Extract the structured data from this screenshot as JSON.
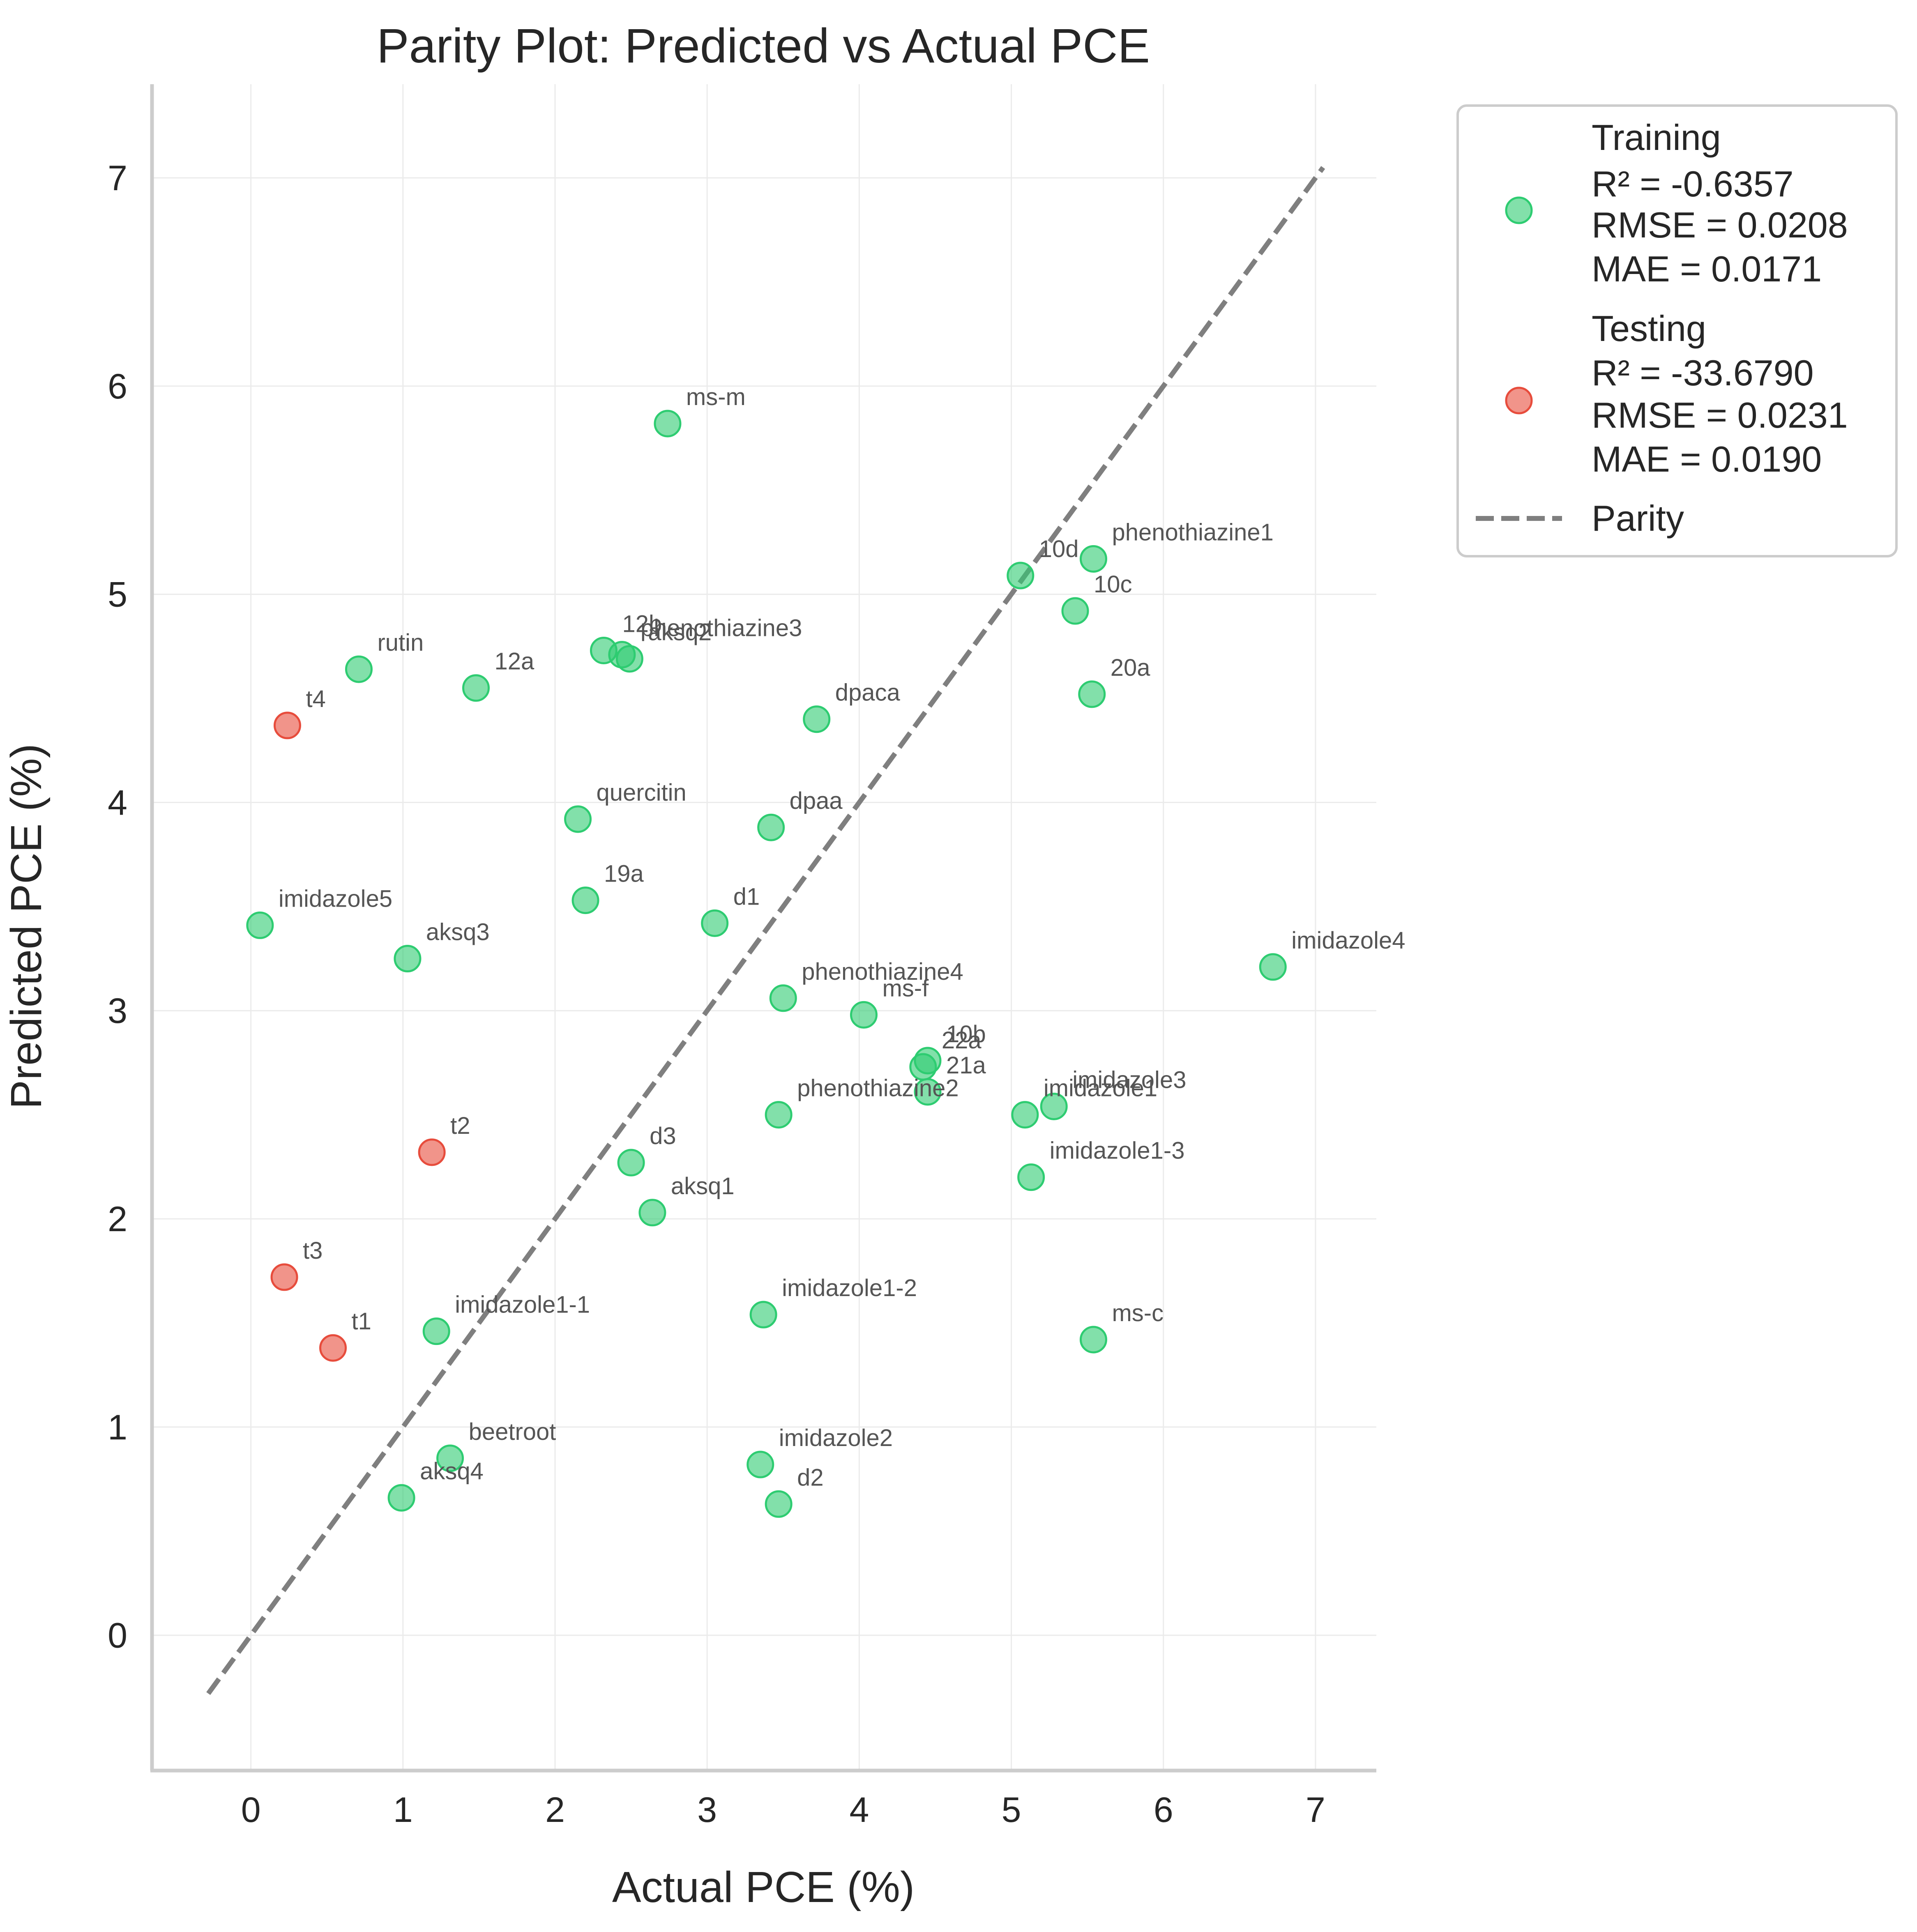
{
  "chart_data": {
    "type": "scatter",
    "title": "Parity Plot: Predicted vs Actual PCE",
    "xlabel": "Actual PCE (%)",
    "ylabel": "Predicted PCE (%)",
    "xlim": [
      -0.65,
      7.4
    ],
    "ylim": [
      -0.65,
      7.45
    ],
    "xticks": [
      "0",
      "1",
      "2",
      "3",
      "4",
      "5",
      "6",
      "7"
    ],
    "yticks": [
      "0",
      "1",
      "2",
      "3",
      "4",
      "5",
      "6",
      "7"
    ],
    "grid": true,
    "legend_position": "outside-top-right",
    "parity_line": {
      "name": "Parity",
      "from": [
        -0.28,
        -0.28
      ],
      "to": [
        7.05,
        7.05
      ],
      "color": "#7f7f7f",
      "style": "dashed"
    },
    "series": [
      {
        "name": "Training",
        "stats": [
          "R² = -0.6357",
          "RMSE = 0.0208",
          "MAE = 0.0171"
        ],
        "color": "#2ecc71",
        "points": [
          {
            "label": "ms-m",
            "x": 2.74,
            "y": 5.82
          },
          {
            "label": "phenothiazine1",
            "x": 5.54,
            "y": 5.17
          },
          {
            "label": "10d",
            "x": 5.06,
            "y": 5.09
          },
          {
            "label": "10c",
            "x": 5.42,
            "y": 4.92
          },
          {
            "label": "20a",
            "x": 5.53,
            "y": 4.52
          },
          {
            "label": "rutin",
            "x": 0.71,
            "y": 4.64
          },
          {
            "label": "12a",
            "x": 1.48,
            "y": 4.55
          },
          {
            "label": "12b",
            "x": 2.32,
            "y": 4.73
          },
          {
            "label": "phenothiazine3",
            "x": 2.44,
            "y": 4.71
          },
          {
            "label": "aksq2",
            "x": 2.49,
            "y": 4.69
          },
          {
            "label": "dpaca",
            "x": 3.72,
            "y": 4.4
          },
          {
            "label": "quercitin",
            "x": 2.15,
            "y": 3.92
          },
          {
            "label": "dpaa",
            "x": 3.42,
            "y": 3.88
          },
          {
            "label": "19a",
            "x": 2.2,
            "y": 3.53
          },
          {
            "label": "d1",
            "x": 3.05,
            "y": 3.42
          },
          {
            "label": "imidazole5",
            "x": 0.06,
            "y": 3.41
          },
          {
            "label": "aksq3",
            "x": 1.03,
            "y": 3.25
          },
          {
            "label": "imidazole4",
            "x": 6.72,
            "y": 3.21
          },
          {
            "label": "phenothiazine4",
            "x": 3.5,
            "y": 3.06
          },
          {
            "label": "ms-f",
            "x": 4.03,
            "y": 2.98
          },
          {
            "label": "10b",
            "x": 4.45,
            "y": 2.76
          },
          {
            "label": "22a",
            "x": 4.42,
            "y": 2.73
          },
          {
            "label": "21a",
            "x": 4.45,
            "y": 2.61
          },
          {
            "label": "phenothiazine2",
            "x": 3.47,
            "y": 2.5
          },
          {
            "label": "imidazole1",
            "x": 5.09,
            "y": 2.5
          },
          {
            "label": "imidazole3",
            "x": 5.28,
            "y": 2.54
          },
          {
            "label": "imidazole1-3",
            "x": 5.13,
            "y": 2.2
          },
          {
            "label": "d3",
            "x": 2.5,
            "y": 2.27
          },
          {
            "label": "aksq1",
            "x": 2.64,
            "y": 2.03
          },
          {
            "label": "imidazole1-2",
            "x": 3.37,
            "y": 1.54
          },
          {
            "label": "imidazole1-1",
            "x": 1.22,
            "y": 1.46
          },
          {
            "label": "ms-c",
            "x": 5.54,
            "y": 1.42
          },
          {
            "label": "beetroot",
            "x": 1.31,
            "y": 0.85
          },
          {
            "label": "imidazole2",
            "x": 3.35,
            "y": 0.82
          },
          {
            "label": "aksq4",
            "x": 0.99,
            "y": 0.66
          },
          {
            "label": "d2",
            "x": 3.47,
            "y": 0.63
          }
        ]
      },
      {
        "name": "Testing",
        "stats": [
          "R² = -33.6790",
          "RMSE = 0.0231",
          "MAE = 0.0190"
        ],
        "color": "#e74c3c",
        "points": [
          {
            "label": "t4",
            "x": 0.24,
            "y": 4.37
          },
          {
            "label": "t2",
            "x": 1.19,
            "y": 2.32
          },
          {
            "label": "t3",
            "x": 0.22,
            "y": 1.72
          },
          {
            "label": "t1",
            "x": 0.54,
            "y": 1.38
          }
        ]
      }
    ]
  }
}
